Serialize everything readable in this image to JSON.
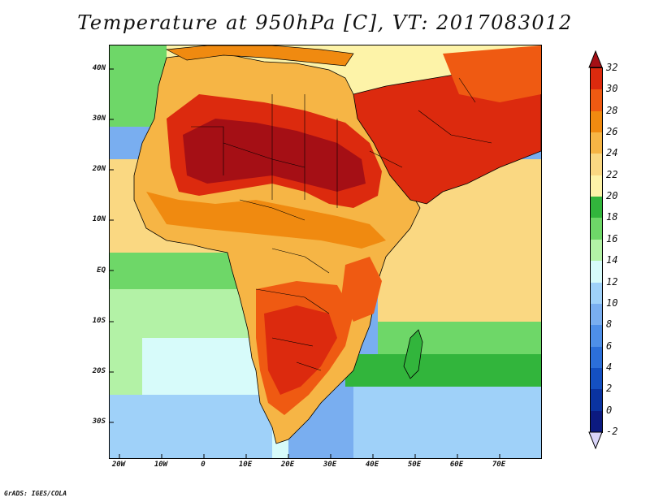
{
  "title": "Temperature at 950hPa [C], VT: 2017083012",
  "credit": "GrADS: IGES/COLA",
  "map": {
    "lon_range": [
      -22,
      80
    ],
    "lat_range": [
      -38,
      45
    ],
    "lat_labels": [
      "40N",
      "30N",
      "20N",
      "10N",
      "EQ",
      "10S",
      "20S",
      "30S"
    ],
    "lon_labels": [
      "20W",
      "10W",
      "0",
      "10E",
      "20E",
      "30E",
      "40E",
      "50E",
      "60E",
      "70E"
    ]
  },
  "colorbar": {
    "labels": [
      "32",
      "30",
      "28",
      "26",
      "24",
      "22",
      "20",
      "18",
      "16",
      "14",
      "12",
      "10",
      "8",
      "6",
      "4",
      "2",
      "0",
      "-2"
    ],
    "colors": [
      "#a50f15",
      "#dc2a0e",
      "#ef5a12",
      "#f08a10",
      "#f6b545",
      "#fad882",
      "#fdf3a8",
      "#32b53c",
      "#6ed768",
      "#b3f2a6",
      "#d7fbfa",
      "#9fd1f9",
      "#79aef0",
      "#4e8fe8",
      "#2c6fd9",
      "#1450c1",
      "#0a33a0",
      "#0c1a80",
      "#d8d4f8"
    ]
  },
  "icons": {
    "colorbar_top": "triangle-up-icon",
    "colorbar_bottom": "triangle-down-icon"
  }
}
